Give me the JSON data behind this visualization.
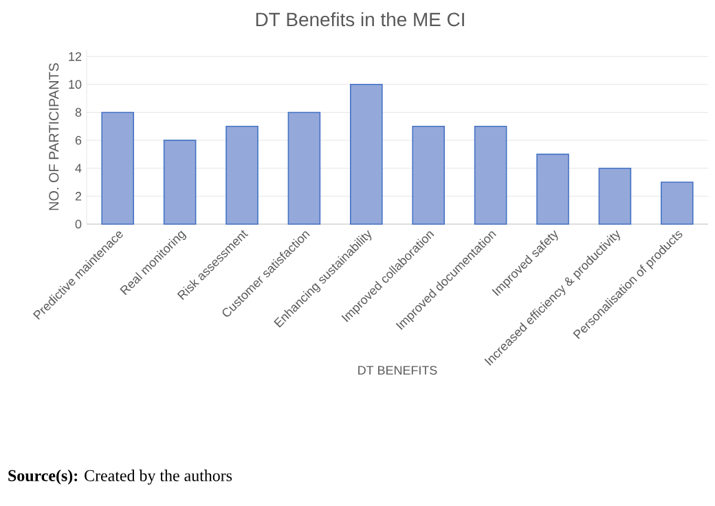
{
  "chart_data": {
    "type": "bar",
    "title": "DT Benefits in the ME CI",
    "xlabel": "DT BENEFITS",
    "ylabel": "NO. OF PARTICIPANTS",
    "categories": [
      "Predictive maintenace",
      "Real monitoring",
      "Risk assessment",
      "Customer satisfaction",
      "Enhancing sustainability",
      "Improved collaboration",
      "Improved documentation",
      "Improved safety",
      "Increased efficiency & productivity",
      "Personalisation of products"
    ],
    "values": [
      8,
      6,
      7,
      8,
      10,
      7,
      7,
      5,
      4,
      3
    ],
    "color": "#94a9da",
    "ylim": [
      0,
      12.5
    ],
    "yticks": [
      0,
      2,
      4,
      6,
      8,
      10,
      12
    ],
    "grid": "y",
    "annotations": [
      "**Source(s):** Created by the authors"
    ]
  }
}
